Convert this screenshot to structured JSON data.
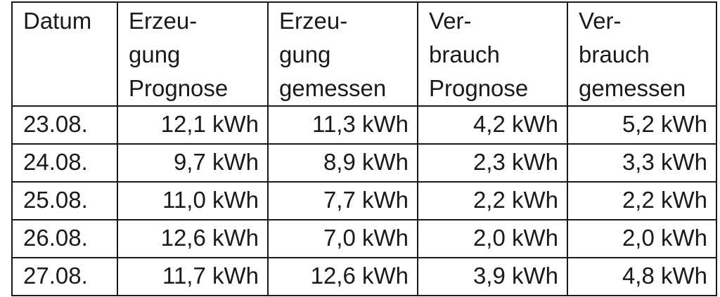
{
  "table": {
    "headers": [
      [
        "Datum"
      ],
      [
        "Erzeu-",
        "gung",
        "Prognose"
      ],
      [
        "Erzeu-",
        "gung",
        "gemessen"
      ],
      [
        "Ver-",
        "brauch",
        "Prognose"
      ],
      [
        "Ver-",
        "brauch",
        "gemessen"
      ]
    ],
    "rows": [
      [
        "23.08.",
        "12,1 kWh",
        "11,3 kWh",
        "4,2 kWh",
        "5,2 kWh"
      ],
      [
        "24.08.",
        "9,7 kWh",
        "8,9 kWh",
        "2,3 kWh",
        "3,3 kWh"
      ],
      [
        "25.08.",
        "11,0 kWh",
        "7,7 kWh",
        "2,2 kWh",
        "2,2 kWh"
      ],
      [
        "26.08.",
        "12,6 kWh",
        "7,0 kWh",
        "2,0 kWh",
        "2,0 kWh"
      ],
      [
        "27.08.",
        "11,7 kWh",
        "12,6 kWh",
        "3,9 kWh",
        "4,8 kWh"
      ]
    ]
  }
}
